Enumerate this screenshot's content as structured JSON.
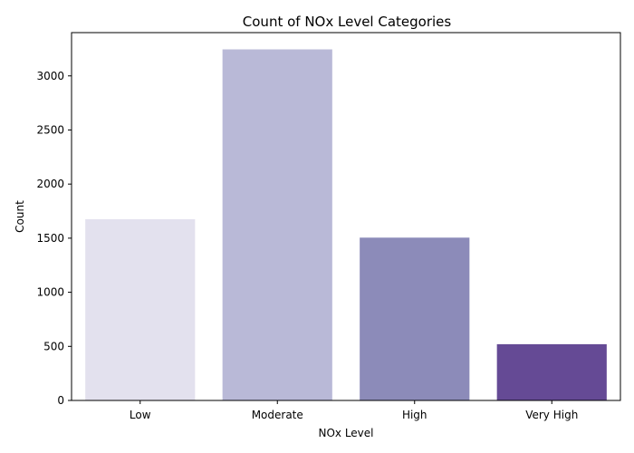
{
  "chart_data": {
    "type": "bar",
    "title": "Count of NOx Level Categories",
    "xlabel": "NOx Level",
    "ylabel": "Count",
    "categories": [
      "Low",
      "Moderate",
      "High",
      "Very High"
    ],
    "values": [
      1675,
      3245,
      1505,
      520
    ],
    "colors": [
      "#e3e1ee",
      "#b9b9d7",
      "#8c8bb9",
      "#654a95"
    ],
    "ylim": [
      0,
      3400
    ],
    "yticks": [
      0,
      500,
      1000,
      1500,
      2000,
      2500,
      3000
    ],
    "grid": false,
    "legend": "none"
  }
}
